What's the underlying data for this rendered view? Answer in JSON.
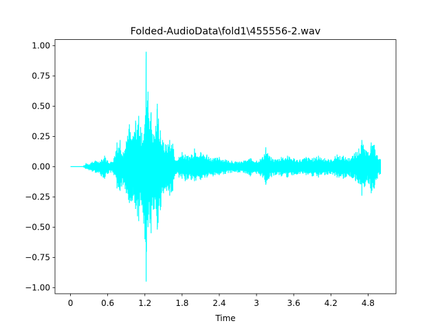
{
  "chart_data": {
    "type": "line",
    "title": "Folded-AudioData\\fold1\\455556-2.wav",
    "xlabel": "Time",
    "ylabel": "",
    "xlim": [
      -0.25,
      5.25
    ],
    "ylim": [
      -1.05,
      1.05
    ],
    "grid": false,
    "line_color": "#00ffff",
    "x_ticks": [
      0,
      0.6,
      1.2,
      1.8,
      2.4,
      3.0,
      3.6,
      4.2,
      4.8
    ],
    "x_tick_labels": [
      "0",
      "0.6",
      "1.2",
      "1.8",
      "2.4",
      "3",
      "3.6",
      "4.2",
      "4.8"
    ],
    "y_ticks": [
      -1.0,
      -0.75,
      -0.5,
      -0.25,
      0.0,
      0.25,
      0.5,
      0.75,
      1.0
    ],
    "y_tick_labels": [
      "−1.00",
      "−0.75",
      "−0.50",
      "−0.25",
      "0.00",
      "0.25",
      "0.50",
      "0.75",
      "1.00"
    ],
    "series": [
      {
        "x": [
          0,
          0.2,
          0.25,
          0.3,
          0.35,
          0.4,
          0.45,
          0.5,
          0.55,
          0.6,
          0.65,
          0.7,
          0.75,
          0.8,
          0.85,
          0.9,
          0.95,
          1.0,
          1.05,
          1.1,
          1.15,
          1.2,
          1.22,
          1.25,
          1.3,
          1.35,
          1.4,
          1.45,
          1.5,
          1.55,
          1.6,
          1.65,
          1.7,
          1.75,
          1.8,
          1.85,
          1.9,
          1.95,
          2.0,
          2.1,
          2.2,
          2.3,
          2.4,
          2.5,
          2.6,
          2.7,
          2.8,
          2.9,
          3.0,
          3.1,
          3.15,
          3.2,
          3.3,
          3.4,
          3.5,
          3.6,
          3.7,
          3.8,
          3.9,
          4.0,
          4.1,
          4.2,
          4.3,
          4.4,
          4.5,
          4.6,
          4.65,
          4.7,
          4.75,
          4.8,
          4.85,
          4.9,
          4.95,
          5.0
        ],
        "max": [
          0.0,
          0.0,
          0.03,
          0.02,
          0.04,
          0.05,
          0.04,
          0.06,
          0.09,
          0.05,
          0.04,
          0.07,
          0.2,
          0.22,
          0.12,
          0.21,
          0.35,
          0.23,
          0.38,
          0.42,
          0.28,
          0.35,
          0.95,
          0.62,
          0.45,
          0.25,
          0.52,
          0.3,
          0.2,
          0.18,
          0.22,
          0.19,
          0.05,
          0.08,
          0.12,
          0.1,
          0.09,
          0.1,
          0.15,
          0.12,
          0.1,
          0.07,
          0.08,
          0.06,
          0.05,
          0.04,
          0.05,
          0.07,
          0.05,
          0.08,
          0.16,
          0.09,
          0.06,
          0.08,
          0.09,
          0.07,
          0.06,
          0.08,
          0.07,
          0.09,
          0.07,
          0.06,
          0.1,
          0.09,
          0.07,
          0.12,
          0.15,
          0.22,
          0.14,
          0.12,
          0.2,
          0.18,
          0.09,
          0.06
        ],
        "min": [
          0.0,
          0.0,
          -0.02,
          -0.03,
          -0.04,
          -0.05,
          -0.05,
          -0.08,
          -0.1,
          -0.06,
          -0.05,
          -0.07,
          -0.18,
          -0.2,
          -0.15,
          -0.22,
          -0.3,
          -0.28,
          -0.35,
          -0.45,
          -0.32,
          -0.6,
          -0.95,
          -0.5,
          -0.55,
          -0.35,
          -0.52,
          -0.36,
          -0.22,
          -0.2,
          -0.24,
          -0.2,
          -0.06,
          -0.09,
          -0.1,
          -0.12,
          -0.1,
          -0.11,
          -0.12,
          -0.11,
          -0.09,
          -0.08,
          -0.07,
          -0.06,
          -0.05,
          -0.05,
          -0.05,
          -0.08,
          -0.06,
          -0.09,
          -0.15,
          -0.1,
          -0.07,
          -0.08,
          -0.09,
          -0.07,
          -0.06,
          -0.07,
          -0.08,
          -0.09,
          -0.07,
          -0.06,
          -0.09,
          -0.1,
          -0.08,
          -0.12,
          -0.14,
          -0.24,
          -0.16,
          -0.13,
          -0.22,
          -0.18,
          -0.1,
          -0.06
        ]
      }
    ]
  }
}
